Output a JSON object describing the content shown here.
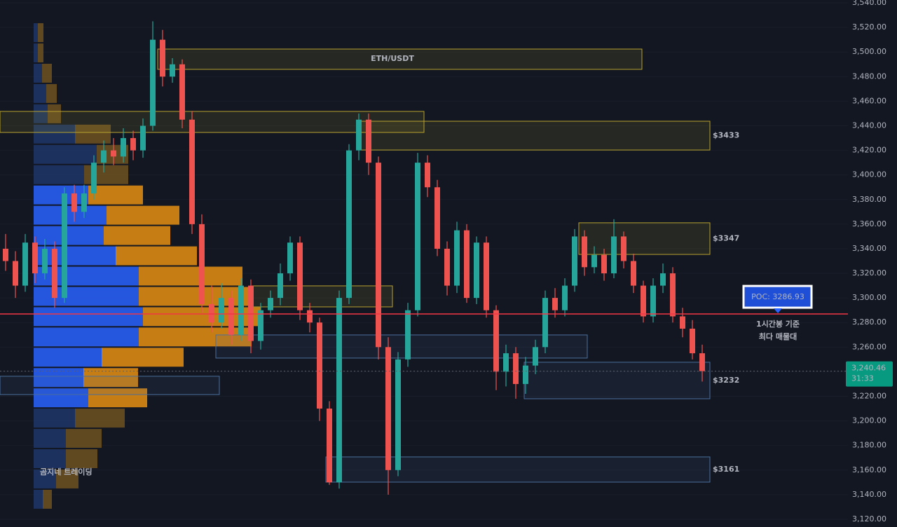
{
  "chart_data": {
    "type": "candlestick",
    "title": "ETH/USDT",
    "watermark": "곰지네 트레이딩",
    "ylim": [
      3113.7,
      3542.3
    ],
    "yticks": [
      {
        "value": 3540,
        "label": "3,540.00"
      },
      {
        "value": 3520,
        "label": "3,520.00"
      },
      {
        "value": 3500,
        "label": "3,500.00"
      },
      {
        "value": 3480,
        "label": "3,480.00"
      },
      {
        "value": 3460,
        "label": "3,460.00"
      },
      {
        "value": 3440,
        "label": "3,440.00"
      },
      {
        "value": 3420,
        "label": "3,420.00"
      },
      {
        "value": 3400,
        "label": "3,400.00"
      },
      {
        "value": 3380,
        "label": "3,380.00"
      },
      {
        "value": 3360,
        "label": "3,360.00"
      },
      {
        "value": 3340,
        "label": "3,340.00"
      },
      {
        "value": 3320,
        "label": "3,320.00"
      },
      {
        "value": 3300,
        "label": "3,300.00"
      },
      {
        "value": 3280,
        "label": "3,280.00"
      },
      {
        "value": 3260,
        "label": "3,260.00"
      },
      {
        "value": 3240,
        "label": "3,240.00"
      },
      {
        "value": 3220,
        "label": "3,220.00"
      },
      {
        "value": 3200,
        "label": "3,200.00"
      },
      {
        "value": 3180,
        "label": "3,180.00"
      },
      {
        "value": 3160,
        "label": "3,160.00"
      },
      {
        "value": 3140,
        "label": "3,140.00"
      },
      {
        "value": 3120,
        "label": "3,120.00"
      }
    ],
    "up_color": "#26a69a",
    "down_color": "#ef5350",
    "open": [
      3340,
      3330,
      3310,
      3345,
      3320,
      3340,
      3300,
      3385,
      3370,
      3385,
      3410,
      3420,
      3415,
      3430,
      3420,
      3440,
      3510,
      3480,
      3490,
      3445,
      3360,
      3295,
      3280,
      3300,
      3270,
      3310,
      3265,
      3290,
      3300,
      3320,
      3345,
      3290,
      3280,
      3210,
      3150,
      3300,
      3420,
      3445,
      3410,
      3260,
      3160,
      3250,
      3290,
      3410,
      3390,
      3340,
      3310,
      3355,
      3300,
      3345,
      3290,
      3240,
      3255,
      3230,
      3245,
      3260,
      3300,
      3290,
      3310,
      3350,
      3325,
      3335,
      3320,
      3350,
      3330,
      3310,
      3285,
      3310,
      3320,
      3285,
      3275,
      3255
    ],
    "high": [
      3352,
      3338,
      3352,
      3350,
      3348,
      3346,
      3390,
      3392,
      3392,
      3416,
      3428,
      3430,
      3438,
      3436,
      3446,
      3525,
      3518,
      3495,
      3494,
      3452,
      3368,
      3310,
      3312,
      3306,
      3316,
      3315,
      3296,
      3306,
      3328,
      3350,
      3350,
      3296,
      3284,
      3216,
      3306,
      3425,
      3450,
      3450,
      3415,
      3268,
      3256,
      3296,
      3418,
      3416,
      3396,
      3346,
      3362,
      3360,
      3350,
      3350,
      3294,
      3262,
      3260,
      3252,
      3266,
      3306,
      3308,
      3316,
      3356,
      3355,
      3342,
      3340,
      3364,
      3354,
      3336,
      3314,
      3316,
      3328,
      3325,
      3292,
      3282,
      3262
    ],
    "low": [
      3322,
      3300,
      3305,
      3312,
      3315,
      3292,
      3296,
      3362,
      3365,
      3380,
      3402,
      3408,
      3410,
      3412,
      3414,
      3436,
      3472,
      3475,
      3438,
      3352,
      3288,
      3272,
      3275,
      3262,
      3265,
      3255,
      3258,
      3284,
      3294,
      3314,
      3282,
      3272,
      3200,
      3148,
      3145,
      3295,
      3412,
      3400,
      3250,
      3140,
      3155,
      3244,
      3285,
      3382,
      3334,
      3302,
      3304,
      3296,
      3295,
      3284,
      3225,
      3228,
      3218,
      3222,
      3238,
      3255,
      3284,
      3285,
      3305,
      3318,
      3320,
      3314,
      3316,
      3324,
      3304,
      3280,
      3280,
      3304,
      3280,
      3268,
      3250,
      3232
    ],
    "close": [
      3330,
      3310,
      3345,
      3320,
      3340,
      3300,
      3385,
      3370,
      3385,
      3410,
      3420,
      3415,
      3430,
      3420,
      3440,
      3510,
      3480,
      3490,
      3445,
      3360,
      3295,
      3280,
      3300,
      3270,
      3310,
      3265,
      3290,
      3300,
      3320,
      3345,
      3290,
      3280,
      3210,
      3150,
      3300,
      3420,
      3445,
      3410,
      3260,
      3160,
      3250,
      3290,
      3410,
      3390,
      3340,
      3310,
      3355,
      3300,
      3345,
      3290,
      3240,
      3255,
      3230,
      3245,
      3260,
      3300,
      3290,
      3310,
      3350,
      3325,
      3335,
      3320,
      3350,
      3330,
      3310,
      3285,
      3310,
      3320,
      3285,
      3275,
      3255,
      3240.46
    ],
    "last_price": {
      "value": 3240.46,
      "label": "3,240.46"
    },
    "countdown": "31:33",
    "last_price_color": "#089981",
    "poc": {
      "value": 3286.93,
      "label": "POC: 3286.93",
      "color": "#f23645"
    },
    "annotation": [
      "1시간봉 기준",
      "최다 매물대"
    ],
    "zones": [
      {
        "high": 3502.4,
        "low": 3485.9,
        "color": "#b8a230"
      },
      {
        "high": 3451.7,
        "low": 3434.6,
        "color": "#b8a230"
      },
      {
        "high": 3443.7,
        "low": 3420.3,
        "color": "#b8a230",
        "label": "$3433"
      },
      {
        "high": 3361.1,
        "low": 3335.4,
        "color": "#b8a230",
        "label": "$3347"
      },
      {
        "high": 3309.8,
        "low": 3292.7,
        "color": "#b8a230"
      },
      {
        "high": 3269.9,
        "low": 3251.1,
        "color": "#4a6f9c"
      },
      {
        "high": 3247.7,
        "low": 3218.0,
        "color": "#4a6f9c",
        "label": "$3232"
      },
      {
        "high": 3236.3,
        "low": 3221.4,
        "color": "#4a6f9c"
      },
      {
        "high": 3170.7,
        "low": 3150.2,
        "color": "#4a6f9c",
        "label": "$3161"
      }
    ],
    "volume_profile": {
      "bins": [
        3524,
        3507.5,
        3491,
        3474.5,
        3458,
        3441.5,
        3425,
        3408.5,
        3392,
        3375.5,
        3359,
        3342.5,
        3326,
        3309.5,
        3293,
        3276.5,
        3260,
        3243.5,
        3227,
        3210.5,
        3194,
        3177.5,
        3161,
        3144.5,
        3128
      ],
      "buy": [
        6,
        6,
        12,
        18,
        20,
        59,
        90,
        72,
        78,
        104,
        100,
        117,
        150,
        150,
        156,
        150,
        97,
        71,
        78,
        59,
        46,
        46,
        32,
        13
      ],
      "sell": [
        8,
        8,
        14,
        15,
        19,
        51,
        45,
        63,
        78,
        104,
        95,
        116,
        148,
        161,
        168,
        161,
        117,
        78,
        84,
        71,
        51,
        45,
        32,
        13
      ],
      "value_area": [
        3392,
        3210.5
      ],
      "colors": [
        "#2962ff",
        "#e58f12",
        "#1e3668",
        "#6e5221"
      ]
    }
  }
}
